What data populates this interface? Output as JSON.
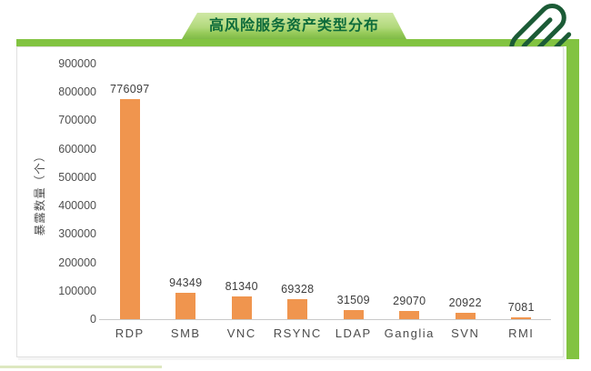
{
  "header": {
    "title": "高风险服务资产类型分布"
  },
  "decorations": {
    "paperclip_icon": "paperclip",
    "frame_color": "#82c341",
    "banner_text_color": "#0d6b3a",
    "paperclip_color": "#1b5b36",
    "bar_color": "#f0954e"
  },
  "chart_data": {
    "type": "bar",
    "title": "高风险服务资产类型分布",
    "categories": [
      "RDP",
      "SMB",
      "VNC",
      "RSYNC",
      "LDAP",
      "Ganglia",
      "SVN",
      "RMI"
    ],
    "values": [
      776097,
      94349,
      81340,
      69328,
      31509,
      29070,
      20922,
      7081
    ],
    "xlabel": "",
    "ylabel": "暴露数量（个）",
    "ylim": [
      0,
      900000
    ],
    "ytick_step": 100000,
    "grid": false,
    "legend": false,
    "value_labels_shown": true
  }
}
